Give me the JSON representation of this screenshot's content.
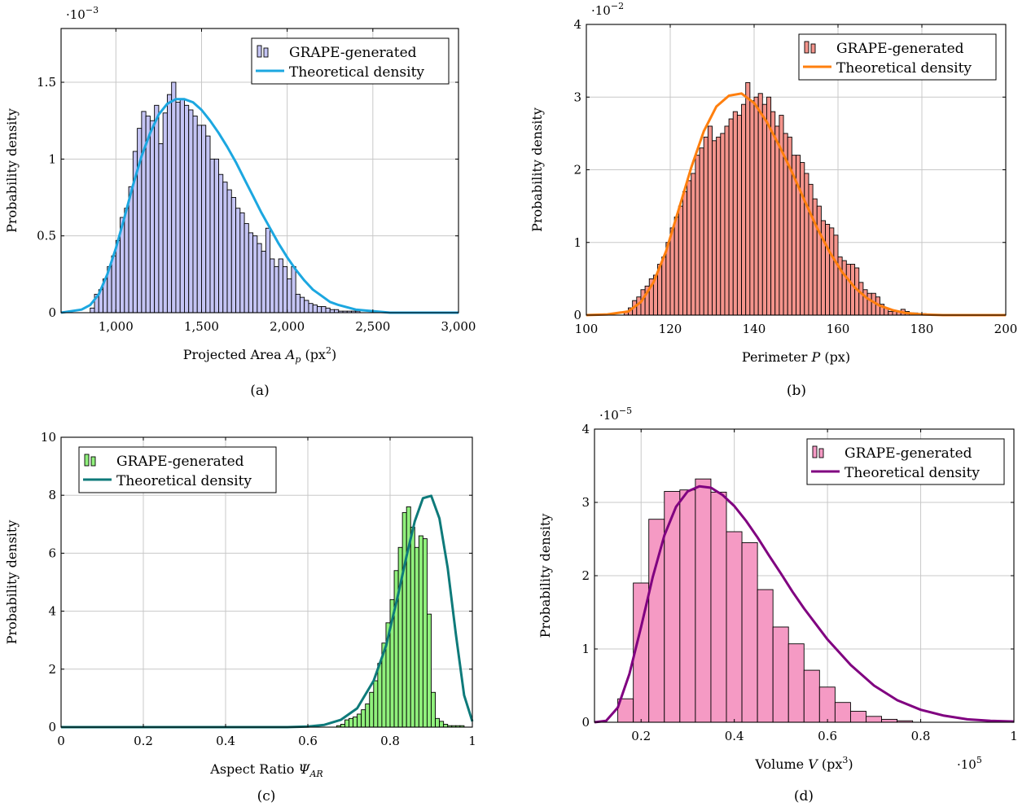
{
  "chart_data": [
    {
      "type": "bar",
      "caption": "(a)",
      "xlabel_main": "Projected Area ",
      "xlabel_var": "A",
      "xlabel_sub": "p",
      "xlabel_unit": " (px",
      "xlabel_sup": "2",
      "xlabel_close": ")",
      "ylabel": "Probability density",
      "y_multiplier_base": "·10",
      "y_multiplier_exp": "−3",
      "x_multiplier_base": "",
      "x_multiplier_exp": "",
      "xlim": [
        680,
        3000
      ],
      "ylim": [
        0,
        1.85
      ],
      "xticks": [
        1000,
        1500,
        2000,
        2500,
        3000
      ],
      "xtick_labels": [
        "1,000",
        "1,500",
        "2,000",
        "2,500",
        "3,000"
      ],
      "yticks": [
        0,
        0.5,
        1,
        1.5
      ],
      "ytick_labels": [
        "0",
        "0.5",
        "1",
        "1.5"
      ],
      "grid": true,
      "legend_position": "top-right",
      "hist_color": "#c4c4f4",
      "curve_color": "#1ca7e0",
      "series": [
        {
          "name": "GRAPE-generated",
          "kind": "histogram",
          "bin_start": 850,
          "bin_width": 25,
          "values": [
            0.03,
            0.12,
            0.15,
            0.22,
            0.3,
            0.37,
            0.47,
            0.62,
            0.68,
            0.82,
            1.05,
            1.2,
            1.31,
            1.28,
            1.25,
            1.35,
            1.1,
            1.3,
            1.42,
            1.5,
            1.37,
            1.39,
            1.35,
            1.32,
            1.28,
            1.22,
            1.22,
            1.15,
            1.0,
            1.0,
            0.9,
            0.85,
            0.8,
            0.75,
            0.68,
            0.65,
            0.58,
            0.52,
            0.5,
            0.45,
            0.4,
            0.55,
            0.35,
            0.3,
            0.35,
            0.3,
            0.22,
            0.3,
            0.12,
            0.1,
            0.08,
            0.06,
            0.05,
            0.04,
            0.04,
            0.03,
            0.02,
            0.02,
            0.01,
            0.01,
            0.01,
            0.01,
            0.01
          ]
        },
        {
          "name": "Theoretical density",
          "kind": "curve",
          "x": [
            680,
            800,
            850,
            900,
            950,
            1000,
            1050,
            1100,
            1150,
            1200,
            1250,
            1300,
            1350,
            1400,
            1450,
            1500,
            1550,
            1600,
            1650,
            1700,
            1750,
            1800,
            1850,
            1900,
            1950,
            2000,
            2050,
            2100,
            2150,
            2200,
            2250,
            2300,
            2400,
            2500,
            2600,
            2800,
            3000
          ],
          "y": [
            0.0,
            0.02,
            0.05,
            0.12,
            0.25,
            0.42,
            0.62,
            0.83,
            1.02,
            1.17,
            1.29,
            1.36,
            1.39,
            1.39,
            1.37,
            1.32,
            1.25,
            1.17,
            1.08,
            0.98,
            0.87,
            0.76,
            0.65,
            0.55,
            0.45,
            0.36,
            0.28,
            0.21,
            0.15,
            0.11,
            0.07,
            0.05,
            0.02,
            0.01,
            0.0,
            0.0,
            0.0
          ]
        }
      ]
    },
    {
      "type": "bar",
      "caption": "(b)",
      "xlabel_main": "Perimeter ",
      "xlabel_var": "P",
      "xlabel_sub": "",
      "xlabel_unit": " (px",
      "xlabel_sup": "",
      "xlabel_close": ")",
      "ylabel": "Probability density",
      "y_multiplier_base": "·10",
      "y_multiplier_exp": "−2",
      "x_multiplier_base": "",
      "x_multiplier_exp": "",
      "xlim": [
        100,
        200
      ],
      "ylim": [
        0,
        4
      ],
      "xticks": [
        100,
        120,
        140,
        160,
        180,
        200
      ],
      "xtick_labels": [
        "100",
        "120",
        "140",
        "160",
        "180",
        "200"
      ],
      "yticks": [
        0,
        1,
        2,
        3,
        4
      ],
      "ytick_labels": [
        "0",
        "1",
        "2",
        "3",
        "4"
      ],
      "grid": true,
      "legend_position": "top-right",
      "hist_color": "#f4948c",
      "curve_color": "#ff7f0e",
      "series": [
        {
          "name": "GRAPE-generated",
          "kind": "histogram",
          "bin_start": 109,
          "bin_width": 1,
          "values": [
            0.05,
            0.1,
            0.2,
            0.25,
            0.35,
            0.4,
            0.5,
            0.55,
            0.7,
            0.8,
            1.0,
            1.2,
            1.35,
            1.5,
            1.7,
            1.85,
            1.95,
            2.2,
            2.3,
            2.45,
            2.6,
            2.4,
            2.45,
            2.5,
            2.6,
            2.7,
            2.8,
            2.75,
            2.9,
            3.2,
            2.95,
            3.0,
            3.05,
            2.9,
            3.0,
            2.8,
            2.6,
            2.75,
            2.5,
            2.45,
            2.2,
            2.2,
            2.1,
            1.95,
            1.8,
            1.6,
            1.5,
            1.3,
            1.25,
            1.2,
            1.1,
            0.8,
            0.75,
            0.7,
            0.7,
            0.65,
            0.45,
            0.35,
            0.3,
            0.3,
            0.25,
            0.15,
            0.1,
            0.05,
            0.05,
            0.05,
            0.08,
            0.05,
            0.03,
            0.03,
            0.02,
            0.02,
            0.01,
            0.01,
            0.01
          ]
        },
        {
          "name": "Theoretical density",
          "kind": "curve",
          "x": [
            100,
            105,
            110,
            113,
            116,
            119,
            122,
            125,
            128,
            131,
            134,
            137,
            140,
            143,
            146,
            149,
            152,
            155,
            158,
            161,
            164,
            167,
            170,
            173,
            176,
            180,
            185,
            190,
            200
          ],
          "y": [
            0.0,
            0.01,
            0.05,
            0.18,
            0.45,
            0.88,
            1.45,
            2.03,
            2.53,
            2.87,
            3.02,
            3.05,
            2.92,
            2.66,
            2.33,
            1.97,
            1.58,
            1.2,
            0.87,
            0.59,
            0.38,
            0.23,
            0.13,
            0.07,
            0.03,
            0.01,
            0.0,
            0.0,
            0.0
          ]
        }
      ]
    },
    {
      "type": "bar",
      "caption": "(c)",
      "xlabel_main": "Aspect Ratio ",
      "xlabel_var": "Ψ",
      "xlabel_sub": "AR",
      "xlabel_unit": "",
      "xlabel_sup": "",
      "xlabel_close": "",
      "ylabel": "Probability density",
      "y_multiplier_base": "",
      "y_multiplier_exp": "",
      "x_multiplier_base": "",
      "x_multiplier_exp": "",
      "xlim": [
        0,
        1
      ],
      "ylim": [
        0,
        10
      ],
      "xticks": [
        0,
        0.2,
        0.4,
        0.6,
        0.8,
        1
      ],
      "xtick_labels": [
        "0",
        "0.2",
        "0.4",
        "0.6",
        "0.8",
        "1"
      ],
      "yticks": [
        0,
        2,
        4,
        6,
        8,
        10
      ],
      "ytick_labels": [
        "0",
        "2",
        "4",
        "6",
        "8",
        "10"
      ],
      "grid": true,
      "legend_position": "top-left",
      "hist_color": "#90f07c",
      "curve_color": "#0e7a7a",
      "series": [
        {
          "name": "GRAPE-generated",
          "kind": "histogram",
          "bin_start": 0.67,
          "bin_width": 0.01,
          "values": [
            0.05,
            0.1,
            0.25,
            0.3,
            0.35,
            0.45,
            0.6,
            0.8,
            1.2,
            1.6,
            2.2,
            2.9,
            3.6,
            4.4,
            5.4,
            6.2,
            7.4,
            7.6,
            6.9,
            6.2,
            6.6,
            6.5,
            3.9,
            1.2,
            0.3,
            0.2,
            0.1,
            0.05,
            0.05,
            0.05,
            0.05
          ]
        },
        {
          "name": "Theoretical density",
          "kind": "curve",
          "x": [
            0,
            0.1,
            0.2,
            0.3,
            0.4,
            0.5,
            0.55,
            0.6,
            0.64,
            0.68,
            0.72,
            0.76,
            0.79,
            0.82,
            0.84,
            0.86,
            0.88,
            0.9,
            0.92,
            0.94,
            0.96,
            0.98,
            1.0
          ],
          "y": [
            0,
            0,
            0,
            0,
            0,
            0,
            0.0,
            0.02,
            0.08,
            0.25,
            0.65,
            1.6,
            2.8,
            4.6,
            5.9,
            7.1,
            7.9,
            7.98,
            7.2,
            5.5,
            3.2,
            1.1,
            0.2
          ]
        }
      ]
    },
    {
      "type": "bar",
      "caption": "(d)",
      "xlabel_main": "Volume ",
      "xlabel_var": "V",
      "xlabel_sub": "",
      "xlabel_unit": " (px",
      "xlabel_sup": "3",
      "xlabel_close": ")",
      "ylabel": "Probability density",
      "y_multiplier_base": "·10",
      "y_multiplier_exp": "−5",
      "x_multiplier_base": "·10",
      "x_multiplier_exp": "5",
      "xlim": [
        0.1,
        1.0
      ],
      "ylim": [
        0,
        4
      ],
      "xticks": [
        0.2,
        0.4,
        0.6,
        0.8,
        1.0
      ],
      "xtick_labels": [
        "0.2",
        "0.4",
        "0.6",
        "0.8",
        "1"
      ],
      "yticks": [
        0,
        1,
        2,
        3,
        4
      ],
      "ytick_labels": [
        "0",
        "1",
        "2",
        "3",
        "4"
      ],
      "grid": true,
      "legend_position": "top-right",
      "hist_color": "#f59ac4",
      "curve_color": "#800080",
      "series": [
        {
          "name": "GRAPE-generated",
          "kind": "histogram",
          "bin_start": 0.15,
          "bin_width": 0.0333,
          "values": [
            0.32,
            1.9,
            2.77,
            3.15,
            3.17,
            3.32,
            3.14,
            2.6,
            2.45,
            1.81,
            1.3,
            1.07,
            0.71,
            0.48,
            0.27,
            0.15,
            0.08,
            0.04,
            0.02
          ]
        },
        {
          "name": "Theoretical density",
          "kind": "curve",
          "x": [
            0.1,
            0.125,
            0.15,
            0.175,
            0.2,
            0.225,
            0.25,
            0.275,
            0.3,
            0.325,
            0.35,
            0.375,
            0.4,
            0.425,
            0.45,
            0.475,
            0.5,
            0.525,
            0.55,
            0.6,
            0.65,
            0.7,
            0.75,
            0.8,
            0.85,
            0.9,
            0.95,
            1.0
          ],
          "y": [
            0.0,
            0.02,
            0.2,
            0.66,
            1.3,
            1.98,
            2.55,
            2.94,
            3.15,
            3.22,
            3.2,
            3.1,
            2.95,
            2.75,
            2.52,
            2.27,
            2.03,
            1.78,
            1.55,
            1.13,
            0.78,
            0.5,
            0.3,
            0.17,
            0.09,
            0.04,
            0.02,
            0.01
          ]
        }
      ]
    }
  ]
}
